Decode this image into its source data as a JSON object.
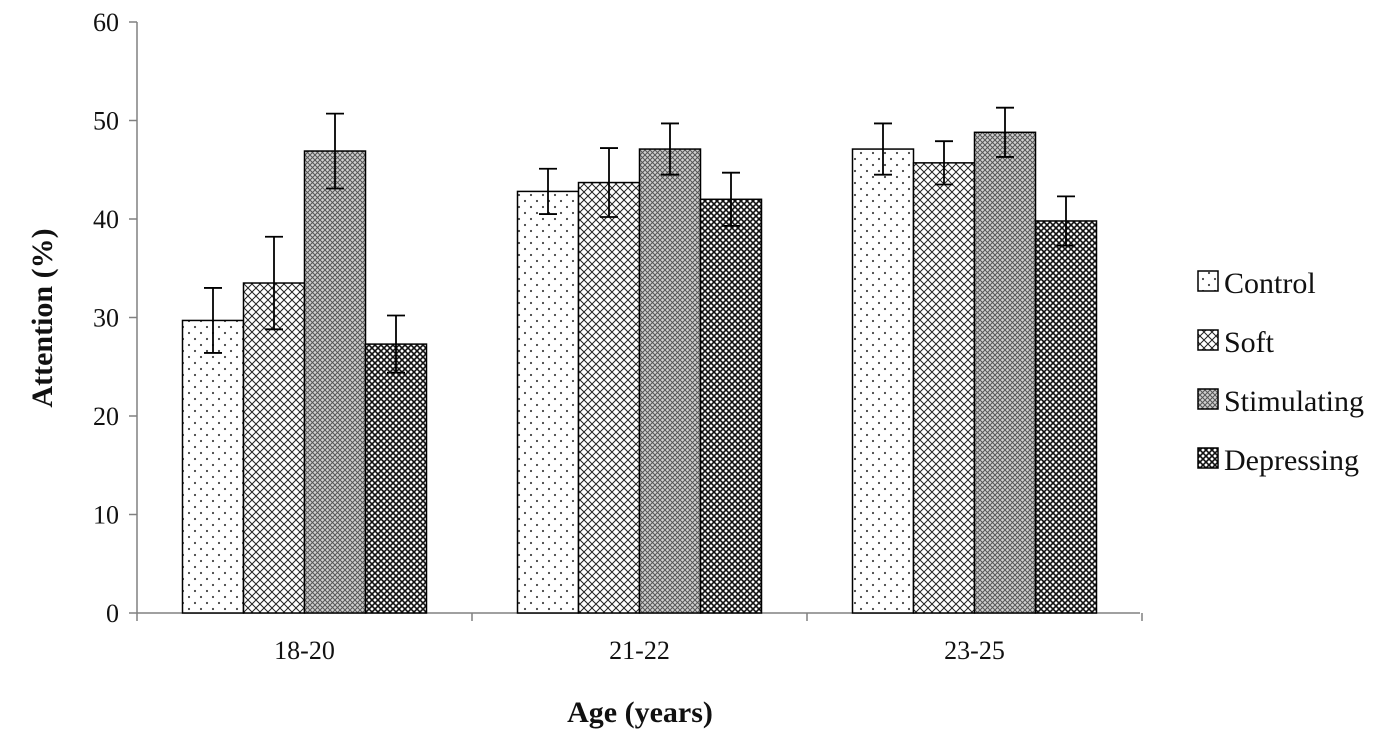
{
  "chart_data": {
    "type": "bar",
    "title": "",
    "xlabel": "Age (years)",
    "ylabel": "Attention (%)",
    "ylim": [
      0,
      60
    ],
    "yticks": [
      0,
      10,
      20,
      30,
      40,
      50,
      60
    ],
    "ytick_labels": [
      "0",
      "10",
      "20",
      "30",
      "40",
      "50",
      "60"
    ],
    "categories": [
      "18-20",
      "21-22",
      "23-25"
    ],
    "grid": false,
    "legend_position": "right",
    "series": [
      {
        "name": "Control",
        "pattern": "dots",
        "values": [
          29.7,
          42.8,
          47.1
        ],
        "errors": [
          3.3,
          2.3,
          2.6
        ]
      },
      {
        "name": "Soft",
        "pattern": "crosshatch",
        "values": [
          33.5,
          43.7,
          45.7
        ],
        "errors": [
          4.7,
          3.5,
          2.2
        ]
      },
      {
        "name": "Stimulating",
        "pattern": "densegrid",
        "values": [
          46.9,
          47.1,
          48.8
        ],
        "errors": [
          3.8,
          2.6,
          2.5
        ]
      },
      {
        "name": "Depressing",
        "pattern": "darkhatch",
        "values": [
          27.3,
          42.0,
          39.8
        ],
        "errors": [
          2.9,
          2.7,
          2.5
        ]
      }
    ],
    "colors": {
      "axis": "#808080",
      "bar_outline": "#000000",
      "text": "#111111"
    }
  }
}
